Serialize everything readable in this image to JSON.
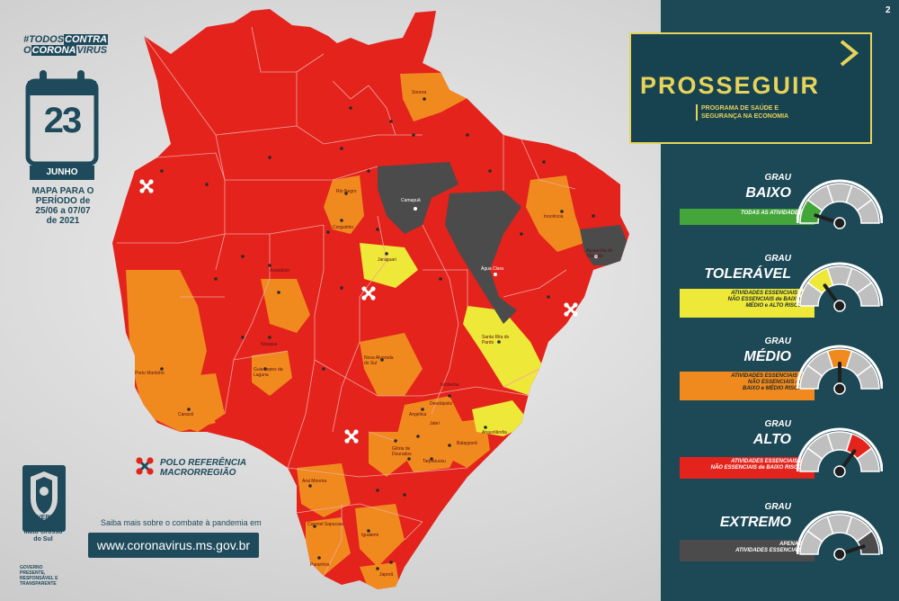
{
  "hashtag": {
    "line1_prefix": "#",
    "line1_a": "TODOS",
    "line1_b": "CONTRA",
    "line2_a": "O",
    "line2_b": "CORONA",
    "line2_c": "VIRUS"
  },
  "calendar": {
    "day": "23",
    "month": "JUNHO"
  },
  "period": {
    "line1": "MAPA PARA O",
    "line2": "PERÍODO de",
    "line3": "25/06 a 07/07",
    "line4": "de 2021"
  },
  "legend": {
    "line1": "POLO REFERÊNCIA",
    "line2": "MACRORREGIÃO"
  },
  "info": {
    "text": "Saiba mais sobre o combate à pandemia em",
    "url": "www.coronavirus.ms.gov.br"
  },
  "government": {
    "line1": "GOVERNO",
    "line2": "DO ESTADO",
    "line3": "Mato Grosso",
    "line4": "do Sul",
    "tag1": "GOVERNO",
    "tag2": "PRESENTE,",
    "tag3": "RESPONSÁVEL E",
    "tag4": "TRANSPARENTE"
  },
  "page_number": "2",
  "program": {
    "title": "PROSSEGUIR",
    "subtitle1": "PROGRAMA DE SAÚDE E",
    "subtitle2": "SEGURANÇA NA ECONOMIA"
  },
  "colors": {
    "extreme": "#e3231c",
    "high_map": "#e3231c",
    "medium": "#f08a1f",
    "tolerable": "#eee839",
    "low": "#44a63a",
    "dark": "#4b4b4b",
    "panel": "#1d4856",
    "accent": "#e6d35b"
  },
  "levels": [
    {
      "grau": "GRAU",
      "name": "BAIXO",
      "lines": [
        "TODAS AS ATIVIDADES"
      ],
      "color": "#44a63a",
      "needle": 0.1
    },
    {
      "grau": "GRAU",
      "name": "TOLERÁVEL",
      "lines": [
        "ATIVIDADES ESSENCIAIS e",
        "NÃO ESSENCIAIS de BAIXO,",
        "MÉDIO e ALTO RISCO"
      ],
      "color": "#eee839",
      "needle": 0.3
    },
    {
      "grau": "GRAU",
      "name": "MÉDIO",
      "lines": [
        "ATIVIDADES ESSENCIAIS e",
        "NÃO ESSENCIAIS de",
        "BAIXO e MÉDIO RISCO"
      ],
      "color": "#f08a1f",
      "needle": 0.5
    },
    {
      "grau": "GRAU",
      "name": "ALTO",
      "lines": [
        "ATIVIDADES ESSENCIAIS e",
        "NÃO ESSENCIAIS de BAIXO RISCO"
      ],
      "color": "#e3231c",
      "needle": 0.7
    },
    {
      "grau": "GRAU",
      "name": "EXTREMO",
      "lines": [
        "APENAS",
        "ATIVIDADES ESSENCIAIS"
      ],
      "color": "#4b4b4b",
      "needle": 0.9
    }
  ],
  "cities": [
    {
      "name": "Sonora",
      "light": false
    },
    {
      "name": "Camapuã",
      "light": true
    },
    {
      "name": "Água Clara",
      "light": true
    },
    {
      "name": "Aparecida do Taboado",
      "light": false
    },
    {
      "name": "Inocência",
      "light": false
    },
    {
      "name": "Jaraguari",
      "light": false
    },
    {
      "name": "Corguinho",
      "light": false
    },
    {
      "name": "Rio Negro",
      "light": false
    },
    {
      "name": "Santa Rita do Pardo",
      "light": false
    },
    {
      "name": "Anaurilândia",
      "light": false
    },
    {
      "name": "Porto Murtinho",
      "light": false
    },
    {
      "name": "Caracol",
      "light": false
    },
    {
      "name": "Nioaque",
      "light": false
    },
    {
      "name": "Nova Alvorada do Sul",
      "light": false
    },
    {
      "name": "Angélica",
      "light": false
    },
    {
      "name": "Batayporã",
      "light": false
    },
    {
      "name": "Taquarussu",
      "light": false
    },
    {
      "name": "Aral Moreira",
      "light": false
    },
    {
      "name": "Coronel Sapucaia",
      "light": false
    },
    {
      "name": "Paranhos",
      "light": false
    },
    {
      "name": "Iguatemi",
      "light": false
    },
    {
      "name": "Japorã",
      "light": false
    },
    {
      "name": "Guia Lopes da Laguna",
      "light": false
    },
    {
      "name": "Anastácio",
      "light": false
    },
    {
      "name": "Jateí",
      "light": false
    },
    {
      "name": "Deodápolis",
      "light": false
    },
    {
      "name": "Glória de Dourados",
      "light": false
    },
    {
      "name": "Ivinhema",
      "light": false
    }
  ]
}
